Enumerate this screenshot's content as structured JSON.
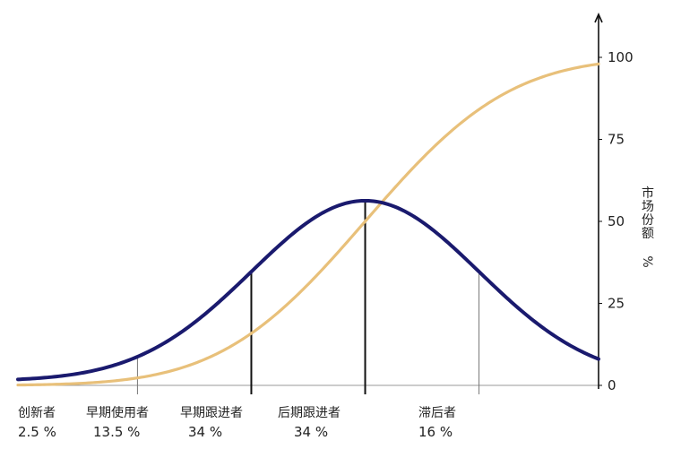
{
  "chart_data": {
    "type": "line",
    "title": "",
    "ylabel_chars": [
      "市",
      "场",
      "份",
      "额"
    ],
    "ylabel_unit": "%",
    "ylim": [
      0,
      100
    ],
    "yticks": [
      {
        "value": 0,
        "label": "0"
      },
      {
        "value": 25,
        "label": "25"
      },
      {
        "value": 50,
        "label": "50"
      },
      {
        "value": 75,
        "label": "75"
      },
      {
        "value": 100,
        "label": "100"
      }
    ],
    "xlim": [
      -3.05,
      2.05
    ],
    "x_unit": "standard deviations from mean adoption time",
    "boundaries": [
      -2,
      -1,
      0,
      1
    ],
    "segments": [
      {
        "name": "创新者",
        "share": "2.5 %"
      },
      {
        "name": "早期使用者",
        "share": "13.5 %"
      },
      {
        "name": "早期跟进者",
        "share": "34 %"
      },
      {
        "name": "后期跟进者",
        "share": "34 %"
      },
      {
        "name": "滞后者",
        "share": "16 %"
      }
    ],
    "series": [
      {
        "kind": "adoption-bell",
        "color": "#1a1a6e",
        "peak": 55,
        "sigma": 1
      },
      {
        "kind": "cumulative-share",
        "color": "#e8c07a",
        "max": 100,
        "sigma": 1
      }
    ]
  }
}
